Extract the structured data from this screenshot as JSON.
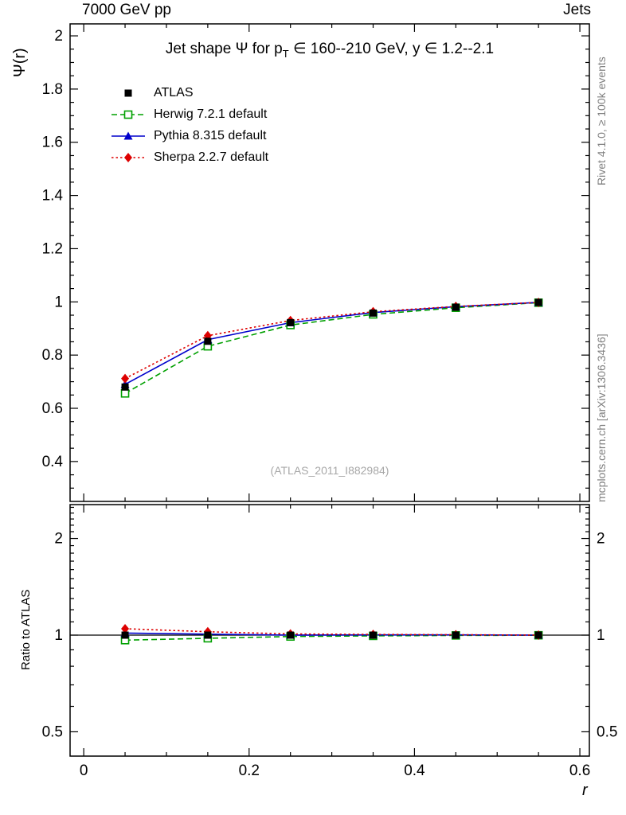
{
  "header": {
    "left": "7000 GeV pp",
    "right": "Jets"
  },
  "side_notes": {
    "top": "Rivet 4.1.0, ≥ 100k events",
    "bottom": "mcplots.cern.ch [arXiv:1306.3436]"
  },
  "watermark": "(ATLAS_2011_I882984)",
  "title_parts": {
    "pre": "Jet shape Ψ for p",
    "sub": "T",
    "post": " ∈ 160--210 GeV, y ∈ 1.2--2.1"
  },
  "chart_data": {
    "type": "line",
    "title": "Jet shape Ψ for pT ∈ 160--210 GeV, y ∈ 1.2--2.1",
    "xlabel": "r",
    "ylabel": "Ψ(r)",
    "ratio_ylabel": "Ratio to ATLAS",
    "grid": false,
    "legend_position": "top-left",
    "x": [
      0.05,
      0.15,
      0.25,
      0.35,
      0.45,
      0.55
    ],
    "xlim": [
      -0.0165,
      0.6115
    ],
    "ylim": [
      0.25,
      2.045
    ],
    "ratio_ylim": [
      0.42,
      2.55
    ],
    "ratio_yscale": "log",
    "ratio_baseline": 1,
    "axes": {
      "x_major": {
        "values": [
          0,
          0.2,
          0.4,
          0.6
        ],
        "labels": [
          "0",
          "0.2",
          "0.4",
          "0.6"
        ]
      },
      "x_minor_step": 0.05,
      "y_major": {
        "values": [
          0.4,
          0.6,
          0.8,
          1,
          1.2,
          1.4,
          1.6,
          1.8,
          2
        ],
        "labels": [
          "0.4",
          "0.6",
          "0.8",
          "1",
          "1.2",
          "1.4",
          "1.6",
          "1.8",
          "2"
        ]
      },
      "y_minor_step": 0.05,
      "ratio_major": {
        "values": [
          0.5,
          1,
          2
        ],
        "labels": [
          "0.5",
          "1",
          "2"
        ]
      },
      "ratio_minor": [
        0.6,
        0.7,
        0.8,
        0.9,
        1.1,
        1.2,
        1.3,
        1.4,
        1.5,
        1.6,
        1.7,
        1.8,
        1.9,
        2.1,
        2.2,
        2.3,
        2.4,
        2.5
      ]
    },
    "series": [
      {
        "name": "ATLAS",
        "color": "#000000",
        "line": "none",
        "marker": "square-filled",
        "values": [
          0.68,
          0.852,
          0.922,
          0.958,
          0.98,
          0.998
        ],
        "yerr": [
          0.01,
          0.007,
          0.005,
          0.004,
          0.003,
          0.002
        ]
      },
      {
        "name": "Herwig 7.2.1 default",
        "color": "#00a000",
        "line": "dashed",
        "marker": "square-open",
        "values": [
          0.656,
          0.833,
          0.913,
          0.953,
          0.978,
          0.997
        ],
        "yerr": [
          0.004,
          0.003,
          0.002,
          0.002,
          0.002,
          0.001
        ]
      },
      {
        "name": "Pythia 8.315 default",
        "color": "#0000cc",
        "line": "solid",
        "marker": "triangle-filled",
        "values": [
          0.69,
          0.858,
          0.922,
          0.96,
          0.982,
          0.998
        ],
        "yerr": [
          0.004,
          0.003,
          0.002,
          0.002,
          0.002,
          0.001
        ]
      },
      {
        "name": "Sherpa 2.2.7 default",
        "color": "#dd0000",
        "line": "dotted",
        "marker": "diamond-filled",
        "values": [
          0.712,
          0.873,
          0.93,
          0.963,
          0.983,
          0.998
        ],
        "yerr": [
          0.004,
          0.003,
          0.002,
          0.002,
          0.002,
          0.001
        ]
      }
    ]
  }
}
